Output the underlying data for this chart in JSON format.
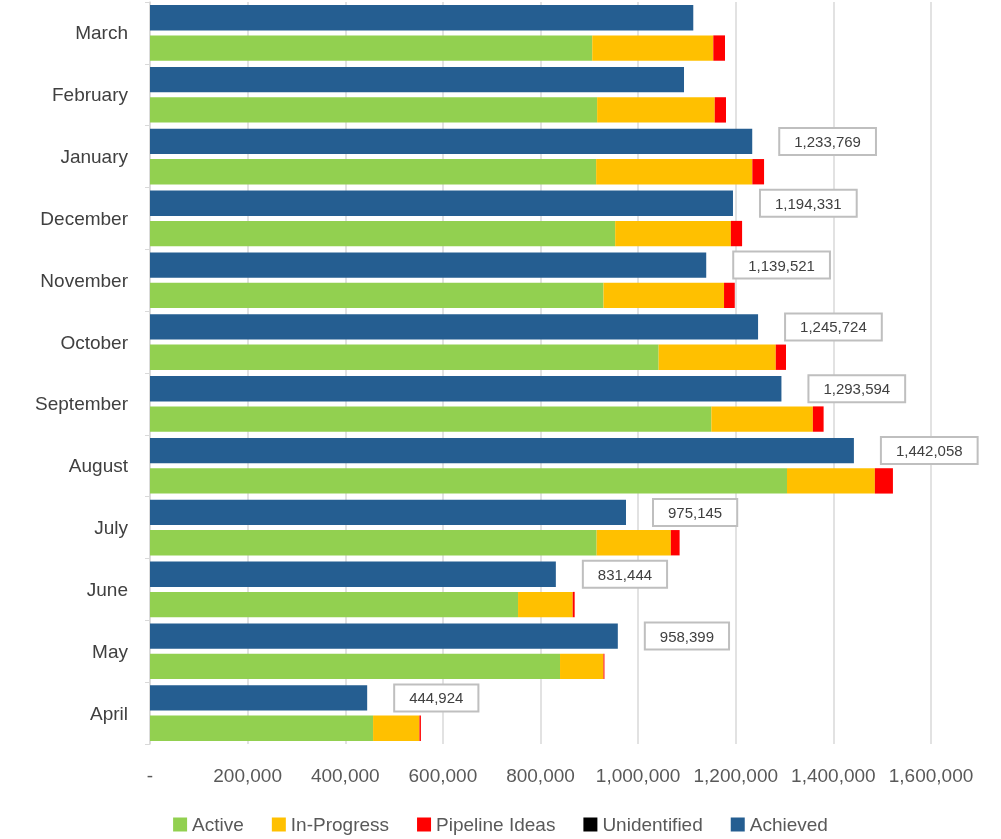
{
  "chart_data": {
    "type": "bar",
    "orientation": "horizontal",
    "categories": [
      "March",
      "February",
      "January",
      "December",
      "November",
      "October",
      "September",
      "August",
      "July",
      "June",
      "May",
      "April"
    ],
    "series": [
      {
        "name": "Active",
        "color": "#92d050",
        "values": [
          906000,
          916000,
          914000,
          953000,
          929000,
          1042000,
          1150000,
          1305000,
          915000,
          754000,
          840000,
          457000
        ],
        "base": [
          0,
          0,
          0,
          0,
          0,
          0,
          0,
          0,
          0,
          0,
          0,
          0
        ]
      },
      {
        "name": "In-Progress",
        "color": "#ffc000",
        "values": [
          248000,
          241000,
          320000,
          237000,
          247000,
          240000,
          208000,
          180000,
          152000,
          112000,
          89000,
          95000
        ],
        "base": [
          906000,
          916000,
          914000,
          953000,
          929000,
          1042000,
          1150000,
          1305000,
          915000,
          754000,
          840000,
          457000
        ]
      },
      {
        "name": "Pipeline Ideas",
        "color": "#ff0000",
        "values": [
          24000,
          23000,
          24000,
          23000,
          22000,
          21000,
          22000,
          37000,
          18000,
          4000,
          2000,
          3000
        ],
        "base": [
          1154000,
          1157000,
          1234000,
          1190000,
          1176000,
          1282000,
          1358000,
          1485000,
          1067000,
          866000,
          929000,
          552000
        ]
      },
      {
        "name": "Unidentified",
        "color": "#000000",
        "values": [
          null,
          null,
          null,
          null,
          null,
          null,
          null,
          null,
          null,
          null,
          null,
          null
        ]
      },
      {
        "name": "Achieved",
        "color": "#255e91",
        "values": [
          1113000,
          1094000,
          1233769,
          1194331,
          1139521,
          1245724,
          1293594,
          1442058,
          975145,
          831444,
          958399,
          444924
        ],
        "value_labels": [
          null,
          null,
          "1,233,769",
          "1,194,331",
          "1,139,521",
          "1,245,724",
          "1,293,594",
          "1,442,058",
          "975,145",
          "831,444",
          "958,399",
          "444,924"
        ]
      }
    ],
    "xlim": [
      0,
      1600000
    ],
    "xticks": [
      {
        "value": 0,
        "label": "-"
      },
      {
        "value": 200000,
        "label": "200,000"
      },
      {
        "value": 400000,
        "label": "400,000"
      },
      {
        "value": 600000,
        "label": "600,000"
      },
      {
        "value": 800000,
        "label": "800,000"
      },
      {
        "value": 1000000,
        "label": "1,000,000"
      },
      {
        "value": 1200000,
        "label": "1,200,000"
      },
      {
        "value": 1400000,
        "label": "1,400,000"
      },
      {
        "value": 1600000,
        "label": "1,600,000"
      }
    ],
    "grid": "x",
    "legend": "bottom"
  }
}
